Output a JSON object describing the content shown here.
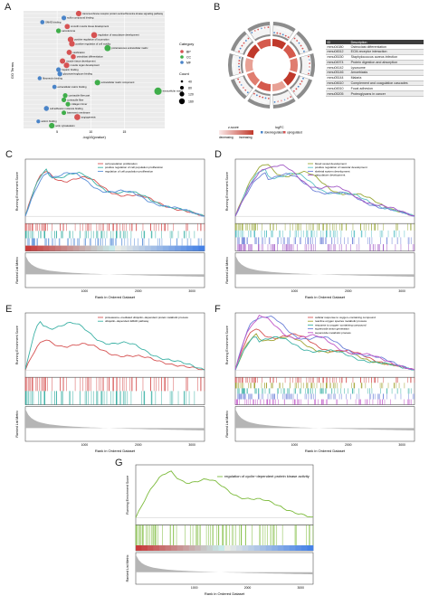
{
  "panels": {
    "A": "A",
    "B": "B",
    "C": "C",
    "D": "D",
    "E": "E",
    "F": "F",
    "G": "G"
  },
  "panelA": {
    "ylabel": "GO Terms",
    "xlabel": "-log10(pvalue)",
    "xticks": [
      "5",
      "10",
      "15"
    ],
    "legend_category_title": "Category",
    "legend_categories": [
      "BP",
      "CC",
      "MF"
    ],
    "legend_count_title": "Count",
    "legend_counts": [
      "40",
      "80",
      "120",
      "160"
    ],
    "terms": [
      "transmembrane receptor protein serine/threonine kinase signaling pathway",
      "sulfur compound binding",
      "SMAD binding",
      "smooth muscle tissue development",
      "sarcolemma",
      "regulation of vasculature development",
      "positive regulation of locomotion",
      "positive regulation of cell motility",
      "proteinaceous extracellular matrix",
      "ossification",
      "osteoblast differentiation",
      "muscle tissue development",
      "muscle organ development",
      "heparin binding",
      "glycosaminoglycan binding",
      "fibronectin binding",
      "extracellular matrix component",
      "extracellular matrix binding",
      "extracellular matrix",
      "contractile fiber part",
      "contractile fiber",
      "collagen trimer",
      "cell adhesion molecule binding",
      "basement membrane",
      "angiogenesis",
      "actinin binding",
      "actin cytoskeleton"
    ],
    "categories": [
      "BP",
      "MF",
      "MF",
      "BP",
      "CC",
      "BP",
      "BP",
      "BP",
      "CC",
      "BP",
      "BP",
      "BP",
      "BP",
      "MF",
      "MF",
      "MF",
      "CC",
      "MF",
      "CC",
      "CC",
      "CC",
      "CC",
      "MF",
      "CC",
      "BP",
      "MF",
      "CC"
    ],
    "neglog10p": [
      8.2,
      6.0,
      2.8,
      6.5,
      5.2,
      10.5,
      7.0,
      7.2,
      12.5,
      6.8,
      7.4,
      5.8,
      6.4,
      5.2,
      5.4,
      2.4,
      11.0,
      4.6,
      20.0,
      6.2,
      6.0,
      6.6,
      3.4,
      6.0,
      8.0,
      2.2,
      4.2
    ],
    "counts": [
      70,
      40,
      30,
      55,
      45,
      85,
      75,
      75,
      95,
      60,
      50,
      65,
      70,
      40,
      45,
      25,
      70,
      30,
      150,
      40,
      40,
      40,
      50,
      35,
      90,
      20,
      70
    ]
  },
  "panelB": {
    "z_title": "z-score",
    "z_decreasing": "decreasing",
    "z_increasing": "increasing",
    "logfc_title": "logFC",
    "logfc_down": "downregulated",
    "logfc_up": "upregulated",
    "table_headers": [
      "ID",
      "Description"
    ],
    "table": [
      [
        "mmu04380",
        "Osteoclast differentiation"
      ],
      [
        "mmu04512",
        "ECM-receptor interaction"
      ],
      [
        "mmu05150",
        "Staphylococcus aureus infection"
      ],
      [
        "mmu04974",
        "Protein digestion and absorption"
      ],
      [
        "mmu04142",
        "Lysosome"
      ],
      [
        "mmu05146",
        "Amoebiasis"
      ],
      [
        "mmu05144",
        "Malaria"
      ],
      [
        "mmu04610",
        "Complement and coagulation cascades"
      ],
      [
        "mmu04510",
        "Focal adhesion"
      ],
      [
        "mmu05205",
        "Proteoglycans in cancer"
      ]
    ]
  },
  "gsea": {
    "yaxis_es": "Running Enrichment Score",
    "yaxis_rank": "Ranked List Metric",
    "xaxis": "Rank in Ordered Dataset",
    "xticks": [
      "1000",
      "2000",
      "3000"
    ],
    "C": {
      "legend": [
        "cell population proliferation",
        "positive regulation of cell population proliferation",
        "regulation of cell population proliferation"
      ],
      "colors": [
        "#d65353",
        "#3cb1a5",
        "#5a8fd8"
      ]
    },
    "D": {
      "legend": [
        "blood vessel development",
        "positive regulation of vascular development",
        "skeletal system development",
        "vasculature development"
      ],
      "colors": [
        "#9aa83a",
        "#5bc1c6",
        "#6b7fd7",
        "#a057c4"
      ]
    },
    "E": {
      "legend": [
        "proteasome−mediated ubiquitin−dependent protein catabolic process",
        "ubiquitin−dependent ERAD pathway"
      ],
      "colors": [
        "#d65353",
        "#3cb1a5"
      ]
    },
    "F": {
      "legend": [
        "cellular response to oxygen−containing compound",
        "reactive oxygen species metabolic process",
        "response to oxygen−containing compound",
        "superoxide anion generation",
        "superoxide metabolic process"
      ],
      "colors": [
        "#d65353",
        "#a1a230",
        "#3cb1a5",
        "#6b7fd7",
        "#c058c8"
      ]
    },
    "G": {
      "legend": [
        "regulation of cyclin−dependent protein kinase activity"
      ],
      "colors": [
        "#7dbb3c"
      ]
    }
  }
}
